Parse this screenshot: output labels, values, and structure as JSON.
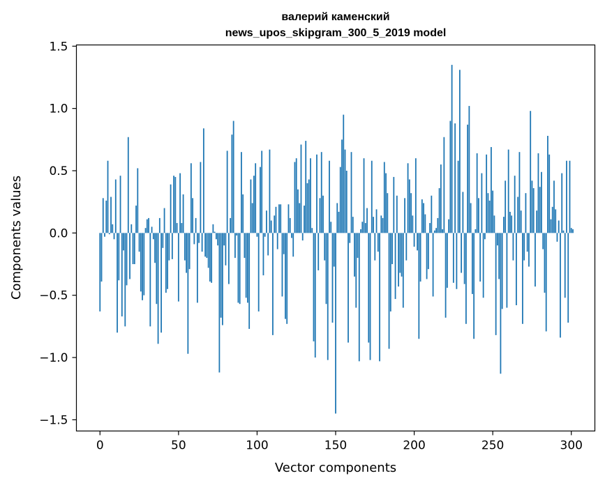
{
  "chart_data": {
    "type": "bar",
    "title_line1": "валерий каменский",
    "title_line2": "news_upos_skipgram_300_5_2019 model",
    "xlabel": "Vector components",
    "ylabel": "Components values",
    "xlim": [
      -15,
      315
    ],
    "ylim": [
      -1.59,
      1.51
    ],
    "xticks": [
      0,
      50,
      100,
      150,
      200,
      250,
      300
    ],
    "yticks": [
      1.5,
      1.0,
      0.5,
      0.0,
      -0.5,
      -1.0,
      -1.5
    ],
    "ytick_labels": [
      "1.5",
      "1.0",
      "0.5",
      "0.0",
      "−0.5",
      "−1.0",
      "−1.5"
    ],
    "bar_color": "#1f77b4",
    "values": [
      -0.63,
      -0.39,
      0.28,
      -0.03,
      0.26,
      0.58,
      -0.01,
      0.29,
      0.07,
      -0.05,
      0.43,
      -0.8,
      -0.38,
      0.46,
      -0.67,
      -0.14,
      -0.75,
      -0.42,
      0.77,
      -0.37,
      0.07,
      -0.25,
      -0.25,
      0.22,
      0.52,
      -0.15,
      -0.47,
      -0.54,
      -0.5,
      0.04,
      0.11,
      0.12,
      -0.75,
      0.05,
      -0.05,
      -0.24,
      -0.57,
      -0.89,
      0.12,
      -0.8,
      -0.12,
      0.2,
      -0.48,
      -0.45,
      -0.22,
      0.39,
      -0.21,
      0.46,
      0.45,
      0.08,
      -0.55,
      0.48,
      0.08,
      0.31,
      -0.22,
      -0.32,
      -0.97,
      -0.29,
      0.56,
      0.28,
      -0.09,
      0.12,
      -0.56,
      -0.08,
      0.57,
      -0.15,
      0.84,
      -0.19,
      -0.2,
      -0.28,
      -0.39,
      -0.4,
      0.07,
      0.01,
      -0.05,
      -0.1,
      -1.12,
      -0.68,
      -0.74,
      -0.1,
      -0.26,
      0.66,
      -0.41,
      0.12,
      0.79,
      0.9,
      -0.2,
      -0.02,
      -0.56,
      -0.57,
      0.65,
      0.31,
      -0.2,
      -0.52,
      -0.56,
      -0.77,
      0.43,
      0.24,
      0.46,
      0.56,
      -0.03,
      -0.63,
      0.53,
      0.66,
      -0.34,
      -0.03,
      0.18,
      -0.18,
      0.67,
      0.1,
      -0.82,
      0.14,
      0.21,
      -0.13,
      0.23,
      0.23,
      -0.51,
      -0.17,
      -0.69,
      -0.73,
      0.23,
      0.12,
      -0.04,
      -0.19,
      0.57,
      0.6,
      0.35,
      0.24,
      0.71,
      -0.06,
      0.22,
      0.74,
      0.4,
      0.43,
      0.6,
      0.04,
      -0.87,
      -1.0,
      0.63,
      -0.3,
      0.28,
      0.65,
      0.3,
      -0.22,
      -0.57,
      -1.02,
      0.58,
      0.09,
      -0.72,
      -0.27,
      -1.45,
      0.24,
      0.17,
      0.53,
      0.75,
      0.95,
      0.67,
      0.5,
      -0.88,
      -0.08,
      0.65,
      0.13,
      -0.35,
      -0.6,
      -0.2,
      -1.03,
      0.03,
      0.09,
      0.6,
      0.08,
      0.2,
      -0.88,
      -1.02,
      0.58,
      0.13,
      -0.22,
      0.19,
      -0.15,
      -1.03,
      0.14,
      0.12,
      0.57,
      0.48,
      0.32,
      -0.93,
      -0.63,
      -0.25,
      0.45,
      -0.53,
      0.3,
      -0.43,
      -0.32,
      -0.35,
      -0.6,
      0.28,
      -0.22,
      0.56,
      0.43,
      0.32,
      0.14,
      -0.11,
      0.6,
      -0.14,
      -0.85,
      -0.39,
      0.27,
      0.24,
      0.15,
      -0.37,
      -0.29,
      0.08,
      0.3,
      -0.51,
      0.02,
      0.04,
      0.12,
      0.36,
      0.55,
      0.03,
      0.77,
      -0.68,
      -0.44,
      0.11,
      0.9,
      1.35,
      -0.4,
      0.88,
      -0.45,
      0.58,
      1.31,
      -0.32,
      0.33,
      -0.41,
      -0.73,
      0.87,
      1.02,
      0.24,
      -0.49,
      -0.85,
      0.03,
      0.64,
      0.28,
      -0.39,
      0.48,
      -0.52,
      -0.05,
      0.63,
      0.32,
      0.26,
      0.69,
      0.34,
      0.14,
      -0.82,
      -0.1,
      -0.37,
      -1.13,
      -0.61,
      0.13,
      0.42,
      -0.6,
      0.67,
      0.17,
      0.14,
      -0.22,
      0.46,
      -0.58,
      0.29,
      0.65,
      0.18,
      -0.73,
      -0.22,
      0.32,
      -0.15,
      -0.27,
      0.98,
      0.42,
      0.36,
      -0.43,
      0.18,
      0.64,
      0.37,
      0.49,
      -0.13,
      -0.48,
      -0.79,
      0.78,
      0.63,
      0.11,
      0.21,
      0.42,
      0.19,
      -0.07,
      0.1,
      -0.84,
      0.48,
      0.02,
      -0.52,
      0.58,
      -0.72,
      0.58,
      0.04,
      0.03
    ]
  }
}
